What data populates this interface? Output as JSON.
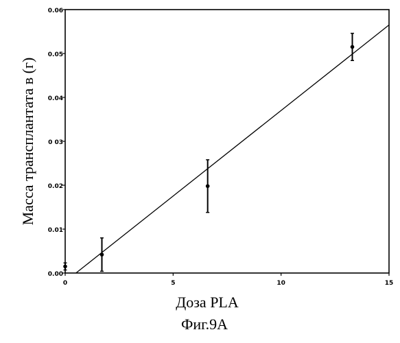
{
  "chart_data": {
    "type": "scatter",
    "title": "",
    "xlabel": "Доза PLA",
    "ylabel": "Масса трансплантата в (г)",
    "caption": "Фиг.9А",
    "xlim": [
      0,
      15
    ],
    "ylim": [
      0,
      0.06
    ],
    "x_ticks": [
      {
        "value": 0,
        "label": "0"
      },
      {
        "value": 5,
        "label": "5"
      },
      {
        "value": 10,
        "label": "10"
      },
      {
        "value": 15,
        "label": "15"
      }
    ],
    "y_ticks": [
      {
        "value": 0,
        "label": "0.00"
      },
      {
        "value": 0.01,
        "label": "0.01"
      },
      {
        "value": 0.02,
        "label": "0.02"
      },
      {
        "value": 0.03,
        "label": "0 03"
      },
      {
        "value": 0.04,
        "label": "0.04"
      },
      {
        "value": 0.05,
        "label": "0.05"
      },
      {
        "value": 0.06,
        "label": "0.06"
      }
    ],
    "points": [
      {
        "x": 0,
        "y": 0.0015,
        "err": 0.0008
      },
      {
        "x": 1.7,
        "y": 0.0042,
        "err": 0.0038
      },
      {
        "x": 6.6,
        "y": 0.0198,
        "err": 0.006
      },
      {
        "x": 13.3,
        "y": 0.0515,
        "err": 0.0031
      }
    ],
    "fit_line": {
      "x": [
        0.5,
        15
      ],
      "y": [
        0,
        0.0565
      ]
    },
    "grid": false,
    "legend": "none"
  }
}
